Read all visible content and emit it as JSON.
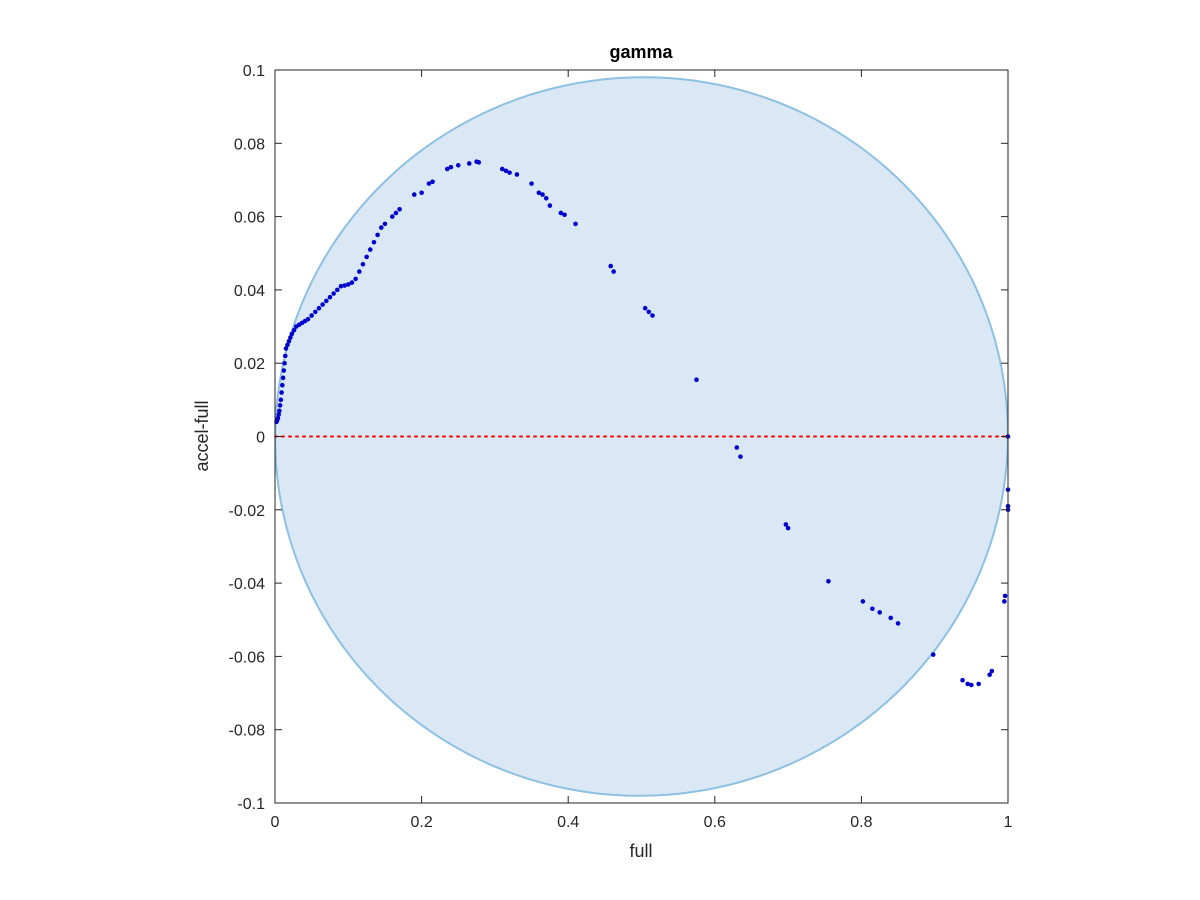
{
  "chart_data": {
    "type": "scatter",
    "title": "gamma",
    "xlabel": "full",
    "ylabel": "accel-full",
    "xlim": [
      0,
      1
    ],
    "ylim": [
      -0.1,
      0.1
    ],
    "xticks": [
      0,
      0.2,
      0.4,
      0.6,
      0.8,
      1
    ],
    "xtick_labels": [
      "0",
      "0.2",
      "0.4",
      "0.6",
      "0.8",
      "1"
    ],
    "yticks": [
      -0.1,
      -0.08,
      -0.06,
      -0.04,
      -0.02,
      0,
      0.02,
      0.04,
      0.06,
      0.08,
      0.1
    ],
    "ytick_labels": [
      "-0.1",
      "-0.08",
      "-0.06",
      "-0.04",
      "-0.02",
      "0",
      "0.02",
      "0.04",
      "0.06",
      "0.08",
      "0.1"
    ],
    "grid": false,
    "reference_line": {
      "y": 0,
      "style": "dotted",
      "color": "#ff0000"
    },
    "ellipse": {
      "cx": 0.5,
      "cy": 0,
      "rx": 0.5,
      "ry": 0.098,
      "angle_deg": -8,
      "fill": "#d9e8f4",
      "stroke": "#8ec0e2"
    },
    "series": [
      {
        "color": "#0000cc",
        "points": [
          [
            0.002,
            0.004
          ],
          [
            0.003,
            0.0045
          ],
          [
            0.004,
            0.005
          ],
          [
            0.005,
            0.006
          ],
          [
            0.006,
            0.007
          ],
          [
            0.007,
            0.0085
          ],
          [
            0.008,
            0.01
          ],
          [
            0.009,
            0.012
          ],
          [
            0.01,
            0.014
          ],
          [
            0.011,
            0.016
          ],
          [
            0.012,
            0.018
          ],
          [
            0.013,
            0.02
          ],
          [
            0.014,
            0.022
          ],
          [
            0.015,
            0.024
          ],
          [
            0.017,
            0.025
          ],
          [
            0.019,
            0.026
          ],
          [
            0.021,
            0.027
          ],
          [
            0.023,
            0.028
          ],
          [
            0.026,
            0.029
          ],
          [
            0.029,
            0.03
          ],
          [
            0.033,
            0.0305
          ],
          [
            0.037,
            0.031
          ],
          [
            0.041,
            0.0315
          ],
          [
            0.045,
            0.032
          ],
          [
            0.05,
            0.033
          ],
          [
            0.055,
            0.034
          ],
          [
            0.06,
            0.035
          ],
          [
            0.065,
            0.036
          ],
          [
            0.07,
            0.037
          ],
          [
            0.075,
            0.038
          ],
          [
            0.08,
            0.039
          ],
          [
            0.085,
            0.04
          ],
          [
            0.09,
            0.041
          ],
          [
            0.095,
            0.0412
          ],
          [
            0.1,
            0.0415
          ],
          [
            0.105,
            0.042
          ],
          [
            0.11,
            0.043
          ],
          [
            0.115,
            0.045
          ],
          [
            0.12,
            0.047
          ],
          [
            0.125,
            0.049
          ],
          [
            0.13,
            0.051
          ],
          [
            0.135,
            0.053
          ],
          [
            0.14,
            0.055
          ],
          [
            0.145,
            0.057
          ],
          [
            0.15,
            0.058
          ],
          [
            0.16,
            0.06
          ],
          [
            0.165,
            0.061
          ],
          [
            0.17,
            0.062
          ],
          [
            0.19,
            0.066
          ],
          [
            0.2,
            0.0665
          ],
          [
            0.21,
            0.069
          ],
          [
            0.215,
            0.0695
          ],
          [
            0.235,
            0.073
          ],
          [
            0.24,
            0.0735
          ],
          [
            0.25,
            0.074
          ],
          [
            0.265,
            0.0745
          ],
          [
            0.275,
            0.075
          ],
          [
            0.278,
            0.0748
          ],
          [
            0.31,
            0.073
          ],
          [
            0.315,
            0.0725
          ],
          [
            0.32,
            0.072
          ],
          [
            0.33,
            0.0715
          ],
          [
            0.35,
            0.069
          ],
          [
            0.36,
            0.0665
          ],
          [
            0.365,
            0.066
          ],
          [
            0.37,
            0.065
          ],
          [
            0.375,
            0.063
          ],
          [
            0.39,
            0.061
          ],
          [
            0.395,
            0.0605
          ],
          [
            0.41,
            0.058
          ],
          [
            0.458,
            0.0465
          ],
          [
            0.462,
            0.045
          ],
          [
            0.505,
            0.035
          ],
          [
            0.51,
            0.034
          ],
          [
            0.515,
            0.033
          ],
          [
            0.575,
            0.0155
          ],
          [
            0.63,
            -0.003
          ],
          [
            0.635,
            -0.0055
          ],
          [
            0.697,
            -0.024
          ],
          [
            0.7,
            -0.025
          ],
          [
            0.755,
            -0.0395
          ],
          [
            0.802,
            -0.045
          ],
          [
            0.815,
            -0.047
          ],
          [
            0.825,
            -0.048
          ],
          [
            0.84,
            -0.0495
          ],
          [
            0.85,
            -0.051
          ],
          [
            0.898,
            -0.0595
          ],
          [
            0.938,
            -0.0665
          ],
          [
            0.945,
            -0.0675
          ],
          [
            0.95,
            -0.0678
          ],
          [
            0.96,
            -0.0675
          ],
          [
            0.975,
            -0.065
          ],
          [
            0.978,
            -0.064
          ],
          [
            0.995,
            -0.045
          ],
          [
            0.996,
            -0.0435
          ],
          [
            1.0,
            -0.0145
          ],
          [
            1.0,
            -0.019
          ],
          [
            1.0,
            -0.02
          ],
          [
            1.0,
            0.0
          ]
        ]
      }
    ]
  }
}
